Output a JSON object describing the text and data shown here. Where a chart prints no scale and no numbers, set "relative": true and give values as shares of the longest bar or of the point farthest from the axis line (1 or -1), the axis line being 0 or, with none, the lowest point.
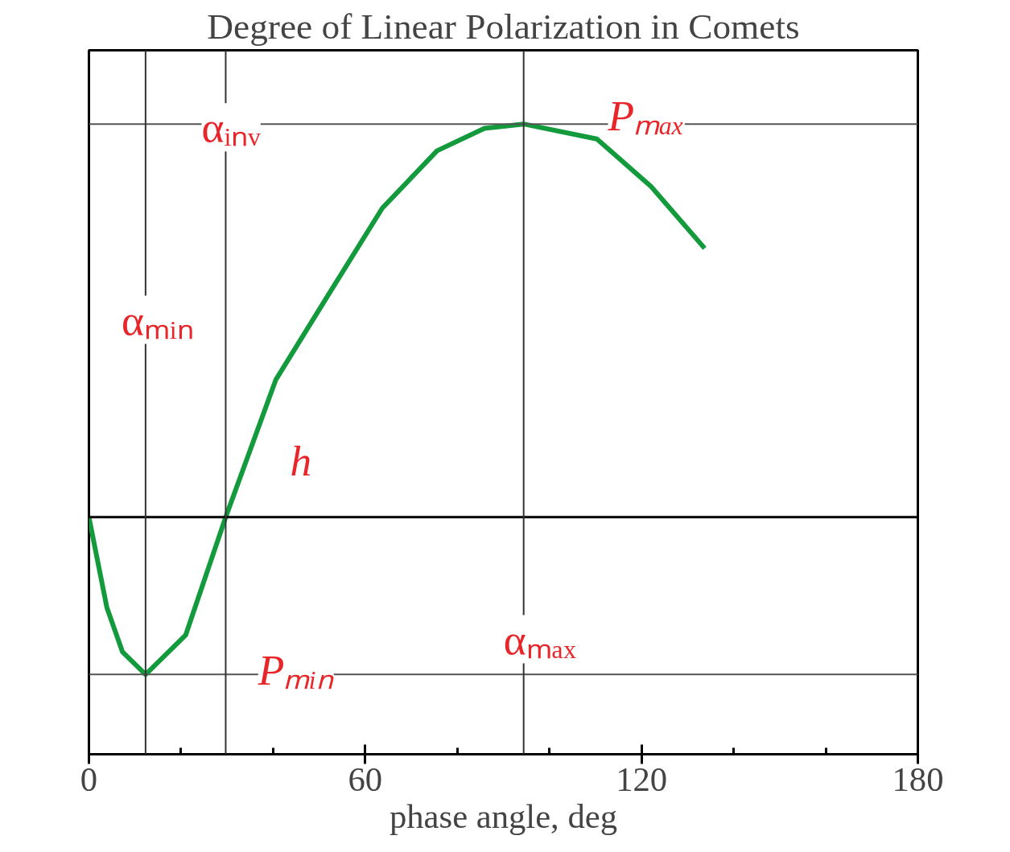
{
  "chart_data": {
    "type": "line",
    "title": "Degree of Linear Polarization in Comets",
    "xlabel": "phase angle, deg",
    "relative": true,
    "x": [
      0,
      3.9,
      7.3,
      12.3,
      21,
      29.7,
      40.6,
      51.7,
      63.7,
      75.6,
      85.9,
      94.4,
      110.3,
      122,
      133.7
    ],
    "series": [
      {
        "color": "#139a3c",
        "values": [
          0,
          -0.23,
          -0.343,
          -0.4,
          -0.3,
          0,
          0.35,
          0.56,
          0.786,
          0.932,
          0.989,
          1.0,
          0.962,
          0.842,
          0.684
        ]
      }
    ],
    "xlim": [
      0,
      180
    ],
    "xticks": [
      0,
      60,
      120,
      180
    ],
    "ref_lines": [
      {
        "axis": "y",
        "value": 0,
        "label": null,
        "color": "#000000"
      },
      {
        "axis": "y",
        "value": 1.0,
        "label": "Pₘₐₓ",
        "color": "#555555"
      },
      {
        "axis": "y",
        "value": -0.4,
        "label": "Pₘᵢₙ",
        "color": "#555555"
      },
      {
        "axis": "x",
        "value": 12.3,
        "label": "αₘᵢₙ",
        "color": "#333333"
      },
      {
        "axis": "x",
        "value": 29.7,
        "label": "αᵢₙᵥ",
        "color": "#333333"
      },
      {
        "axis": "x",
        "value": 94.4,
        "label": "αₘₐₓ",
        "color": "#333333"
      }
    ],
    "annotations": [
      {
        "text": "h",
        "x": 29.7,
        "y": 0
      }
    ],
    "grid": false,
    "marker": "none",
    "line_style": "solid"
  }
}
